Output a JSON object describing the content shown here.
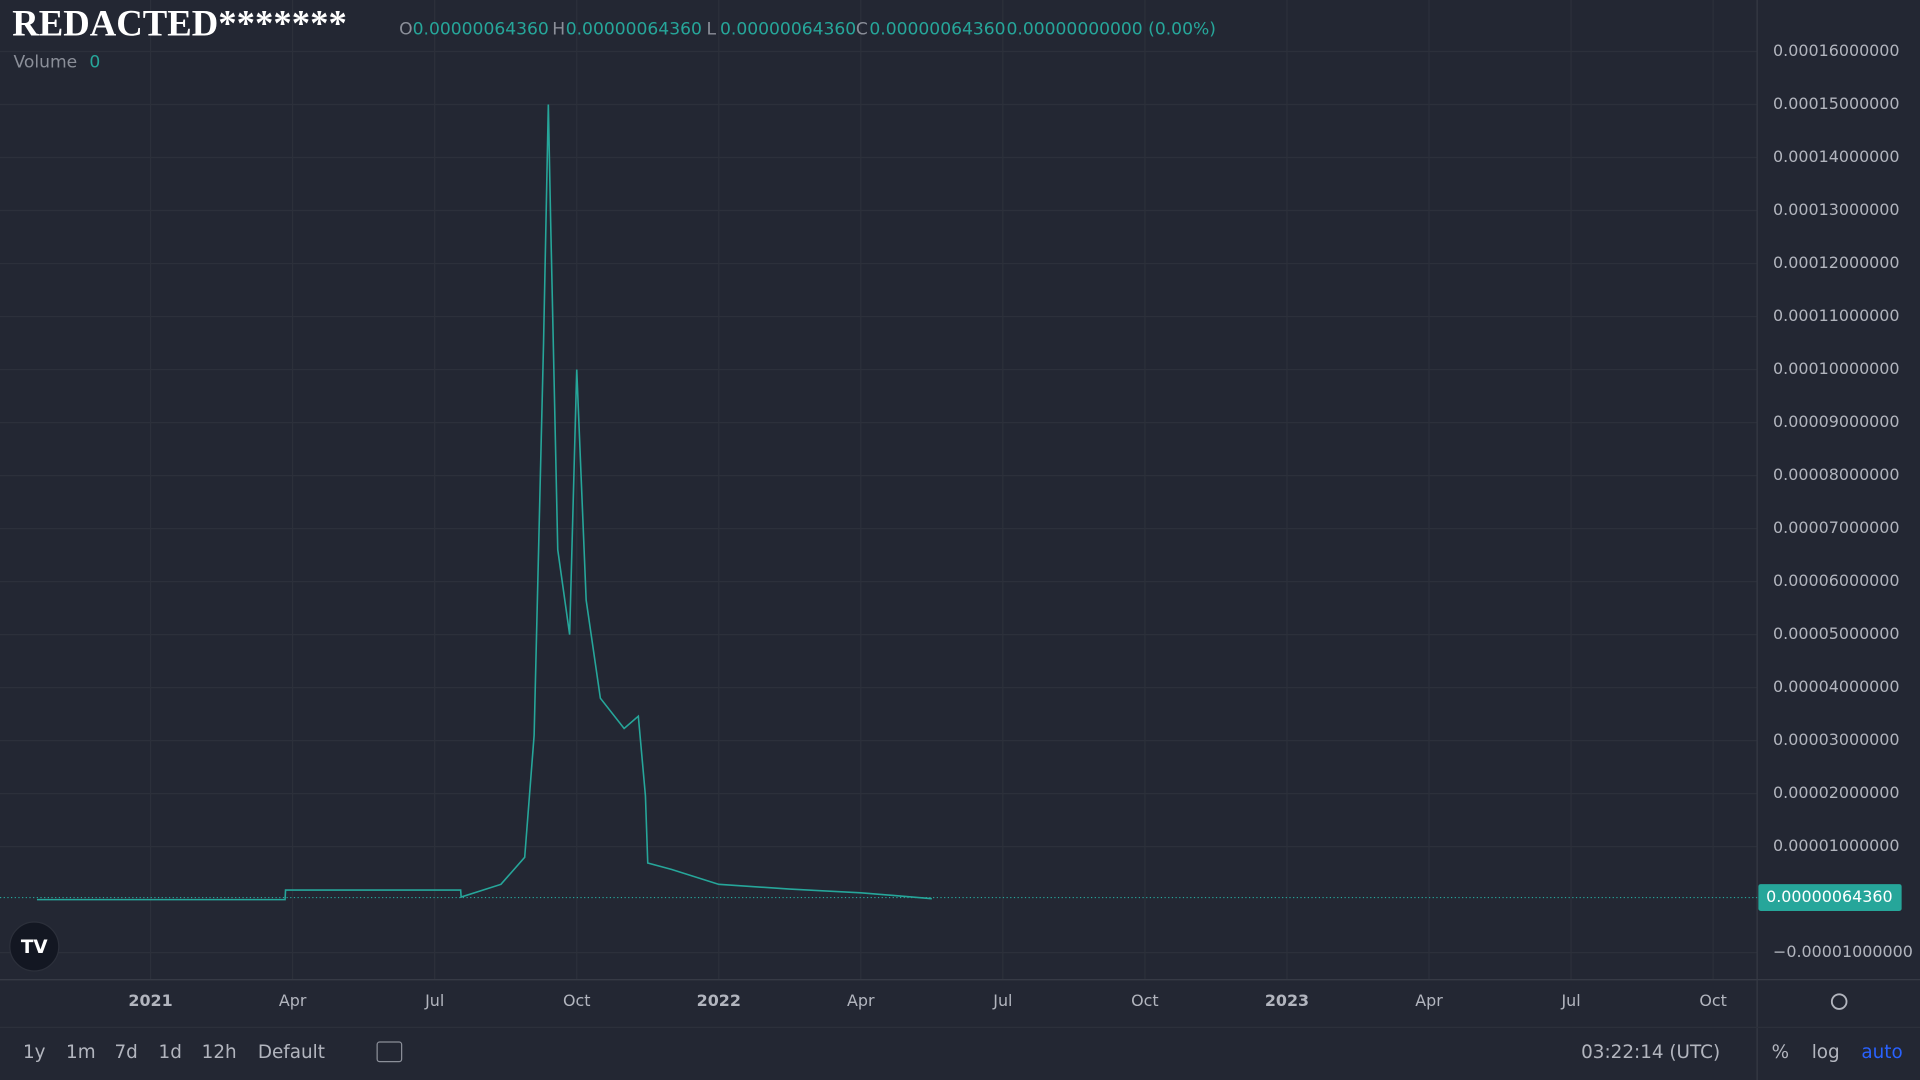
{
  "header": {
    "symbol": "REDACTED*******",
    "ohlc": [
      {
        "label": "O",
        "value": "0.00000064360"
      },
      {
        "label": "H",
        "value": "0.00000064360"
      },
      {
        "label": "L",
        "value": "0.00000064360"
      },
      {
        "label": "C",
        "value": "0.00000064360"
      }
    ],
    "change": "0.00000000000 (0.00%)",
    "volume_label": "Volume",
    "volume_value": "0"
  },
  "price_tag": "0.00000064360",
  "toolbar": {
    "ranges": [
      "1y",
      "1m",
      "7d",
      "1d",
      "12h",
      "Default"
    ],
    "time": "03:22:14 (UTC)",
    "options": [
      "%",
      "log",
      "auto"
    ]
  },
  "chart_data": {
    "type": "line",
    "color": "#26a69a",
    "grid": true,
    "x": [
      -2.4,
      2.84,
      2.85,
      6.55,
      6.56,
      7.4,
      7.9,
      8.1,
      8.3,
      8.4,
      8.45,
      8.6,
      8.85,
      9.0,
      9.2,
      9.5,
      10.0,
      10.3,
      10.45,
      10.5,
      11.0,
      12.0,
      13.5,
      15.0,
      16.5
    ],
    "values": [
      0,
      0,
      1.8e-06,
      1.8e-06,
      5e-07,
      2.9e-06,
      8e-06,
      3.1e-05,
      0.000105,
      0.00015,
      0.000128,
      6.6e-05,
      5e-05,
      0.0001,
      5.65e-05,
      3.8e-05,
      3.23e-05,
      3.46e-05,
      1.96e-05,
      6.9e-06,
      5.7e-06,
      2.9e-06,
      2e-06,
      1.3e-06,
      2e-07
    ],
    "xlim": [
      -3.18,
      33.93
    ],
    "xticks": [
      {
        "value": 0,
        "label": "2021"
      },
      {
        "value": 3,
        "label": "Apr"
      },
      {
        "value": 6,
        "label": "Jul"
      },
      {
        "value": 9,
        "label": "Oct"
      },
      {
        "value": 12,
        "label": "2022"
      },
      {
        "value": 15,
        "label": "Apr"
      },
      {
        "value": 18,
        "label": "Jul"
      },
      {
        "value": 21,
        "label": "Oct"
      },
      {
        "value": 24,
        "label": "2023"
      },
      {
        "value": 27,
        "label": "Apr"
      },
      {
        "value": 30,
        "label": "Jul"
      },
      {
        "value": 33,
        "label": "Oct"
      }
    ],
    "ylim": [
      -1.508e-05,
      0.00016972
    ],
    "yticks": [
      {
        "value": 0.00016,
        "label": "0.00016000000"
      },
      {
        "value": 0.00015,
        "label": "0.00015000000"
      },
      {
        "value": 0.00014,
        "label": "0.00014000000"
      },
      {
        "value": 0.00013,
        "label": "0.00013000000"
      },
      {
        "value": 0.00012,
        "label": "0.00012000000"
      },
      {
        "value": 0.00011,
        "label": "0.00011000000"
      },
      {
        "value": 0.0001,
        "label": "0.00010000000"
      },
      {
        "value": 9e-05,
        "label": "0.00009000000"
      },
      {
        "value": 8e-05,
        "label": "0.00008000000"
      },
      {
        "value": 7e-05,
        "label": "0.00007000000"
      },
      {
        "value": 6e-05,
        "label": "0.00006000000"
      },
      {
        "value": 5e-05,
        "label": "0.00005000000"
      },
      {
        "value": 4e-05,
        "label": "0.00004000000"
      },
      {
        "value": 3e-05,
        "label": "0.00003000000"
      },
      {
        "value": 2e-05,
        "label": "0.00002000000"
      },
      {
        "value": 1e-05,
        "label": "0.00001000000"
      },
      {
        "value": -1e-05,
        "label": "−0.00001000000"
      }
    ]
  }
}
